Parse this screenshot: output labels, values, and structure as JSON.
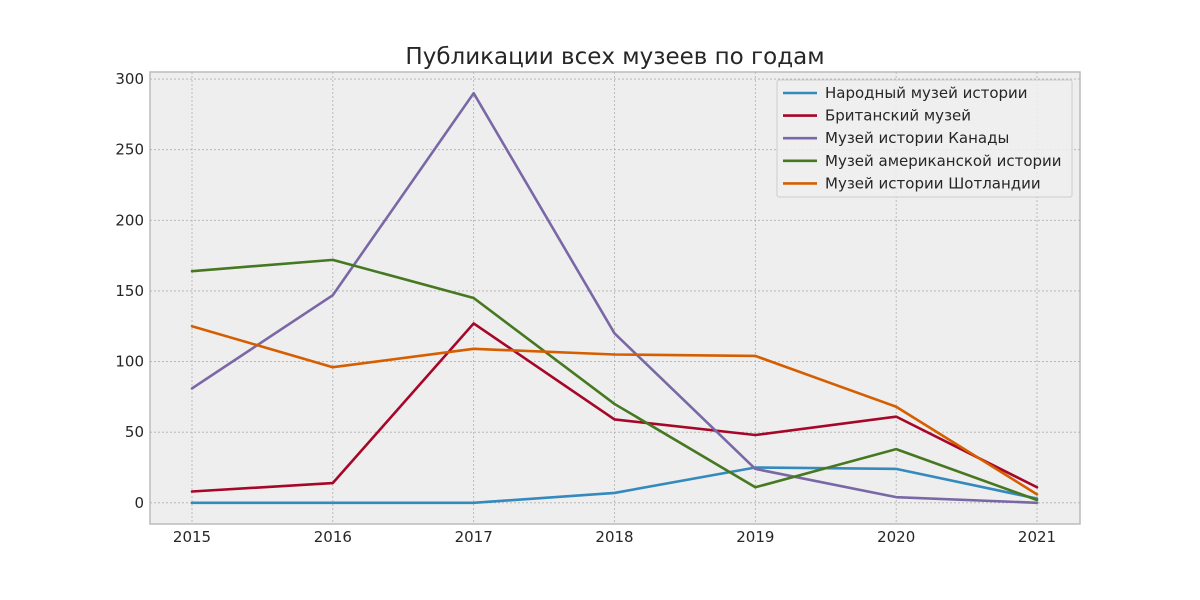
{
  "chart_data": {
    "type": "line",
    "title": "Публикации всех музеев по годам",
    "xlabel": "",
    "ylabel": "",
    "x": [
      2015,
      2016,
      2017,
      2018,
      2019,
      2020,
      2021
    ],
    "xticks": [
      "2015",
      "2016",
      "2017",
      "2018",
      "2019",
      "2020",
      "2021"
    ],
    "yticks": [
      "0",
      "50",
      "100",
      "150",
      "200",
      "250",
      "300"
    ],
    "ylim": [
      -15,
      305
    ],
    "grid": true,
    "legend_position": "top-right",
    "series": [
      {
        "name": "Народный музей истории",
        "color": "#348abd",
        "values": [
          0,
          0,
          0,
          7,
          25,
          24,
          3
        ]
      },
      {
        "name": "Британский музей",
        "color": "#a60628",
        "values": [
          8,
          14,
          127,
          59,
          48,
          61,
          11
        ]
      },
      {
        "name": "Музей истории Канады",
        "color": "#7a68a6",
        "values": [
          81,
          147,
          290,
          120,
          24,
          4,
          0
        ]
      },
      {
        "name": "Музей американской истории",
        "color": "#467821",
        "values": [
          164,
          172,
          145,
          70,
          11,
          38,
          2
        ]
      },
      {
        "name": "Музей истории Шотландии",
        "color": "#d55e00",
        "values": [
          125,
          96,
          109,
          105,
          104,
          68,
          6
        ]
      }
    ]
  }
}
